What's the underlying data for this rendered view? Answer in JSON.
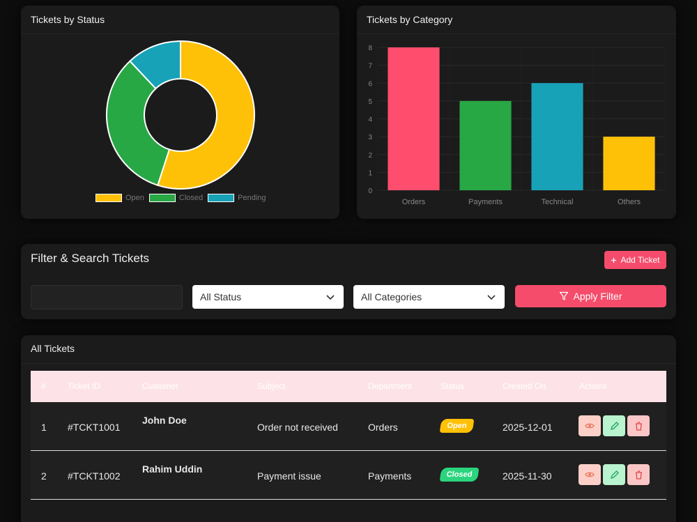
{
  "status_card": {
    "title": "Tickets by Status"
  },
  "category_card": {
    "title": "Tickets by Category"
  },
  "chart_data": [
    {
      "type": "pie",
      "title": "Tickets by Status",
      "categories": [
        "Open",
        "Closed",
        "Pending"
      ],
      "values": [
        55,
        33,
        12
      ],
      "colors": [
        "#ffc107",
        "#28a745",
        "#17a2b8"
      ],
      "legend": "bottom"
    },
    {
      "type": "bar",
      "title": "Tickets by Category",
      "categories": [
        "Orders",
        "Payments",
        "Technical",
        "Others"
      ],
      "values": [
        8,
        5,
        6,
        3
      ],
      "colors": [
        "#ff4d6d",
        "#28a745",
        "#17a2b8",
        "#ffc107"
      ],
      "yticks": [
        0,
        1,
        2,
        3,
        4,
        5,
        6,
        7,
        8
      ],
      "ylim": [
        0,
        8
      ]
    }
  ],
  "filter": {
    "title": "Filter & Search Tickets",
    "add_label": "Add Ticket",
    "add_icon": "plus-icon",
    "search_value": "",
    "status_select": "All Status",
    "category_select": "All Categories",
    "apply_label": "Apply Filter",
    "apply_icon": "filter-icon"
  },
  "tickets": {
    "title": "All Tickets",
    "columns": [
      "#",
      "Ticket ID",
      "Customer",
      "Subject",
      "Department",
      "Status",
      "Created On",
      "Actions"
    ],
    "rows": [
      {
        "num": "1",
        "id": "#TCKT1001",
        "customer": "John Doe",
        "subject": "Order not received",
        "department": "Orders",
        "status": "Open",
        "created": "2025-12-01"
      },
      {
        "num": "2",
        "id": "#TCKT1002",
        "customer": "Rahim Uddin",
        "subject": "Payment issue",
        "department": "Payments",
        "status": "Closed",
        "created": "2025-11-30"
      }
    ],
    "action_icons": [
      "eye-icon",
      "pencil-icon",
      "trash-icon"
    ]
  },
  "colors": {
    "accent": "#f54c6b",
    "card_bg": "#1b1b1b",
    "header_bg": "#fde3e7"
  }
}
